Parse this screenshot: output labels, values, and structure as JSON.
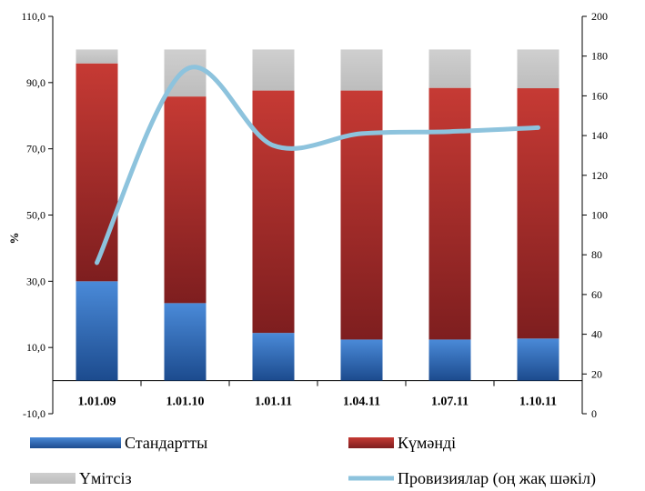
{
  "chart_data": {
    "type": "bar",
    "stacked": true,
    "categories": [
      "1.01.09",
      "1.01.10",
      "1.01.11",
      "1.04.11",
      "1.07.11",
      "1.10.11"
    ],
    "series": [
      {
        "name": "Стандартты",
        "axis": "left",
        "color": "#2f66ad",
        "values": [
          30.0,
          23.4,
          14.4,
          12.4,
          12.4,
          12.7
        ]
      },
      {
        "name": "Күмәнді",
        "axis": "left",
        "color": "#b53030",
        "values": [
          65.8,
          62.4,
          73.2,
          75.2,
          76.0,
          75.6
        ]
      },
      {
        "name": "Үмітсіз",
        "axis": "left",
        "color": "#c9c9c9",
        "values": [
          4.2,
          14.2,
          12.4,
          12.4,
          11.6,
          11.7
        ]
      },
      {
        "name": "Провизиялар (оң жақ шәкіл)",
        "type": "line",
        "axis": "right",
        "color": "#8dc3dd",
        "values": [
          76,
          173,
          135,
          141,
          142,
          144
        ]
      }
    ],
    "ylabel": "%",
    "ylim": [
      -10,
      110
    ],
    "yticks": [
      "-10,0",
      "10,0",
      "30,0",
      "50,0",
      "70,0",
      "90,0",
      "110,0"
    ],
    "y2lim": [
      0,
      200
    ],
    "y2ticks": [
      "0",
      "20",
      "40",
      "60",
      "80",
      "100",
      "120",
      "140",
      "160",
      "180",
      "200"
    ],
    "grid": false,
    "legend_position": "bottom"
  }
}
